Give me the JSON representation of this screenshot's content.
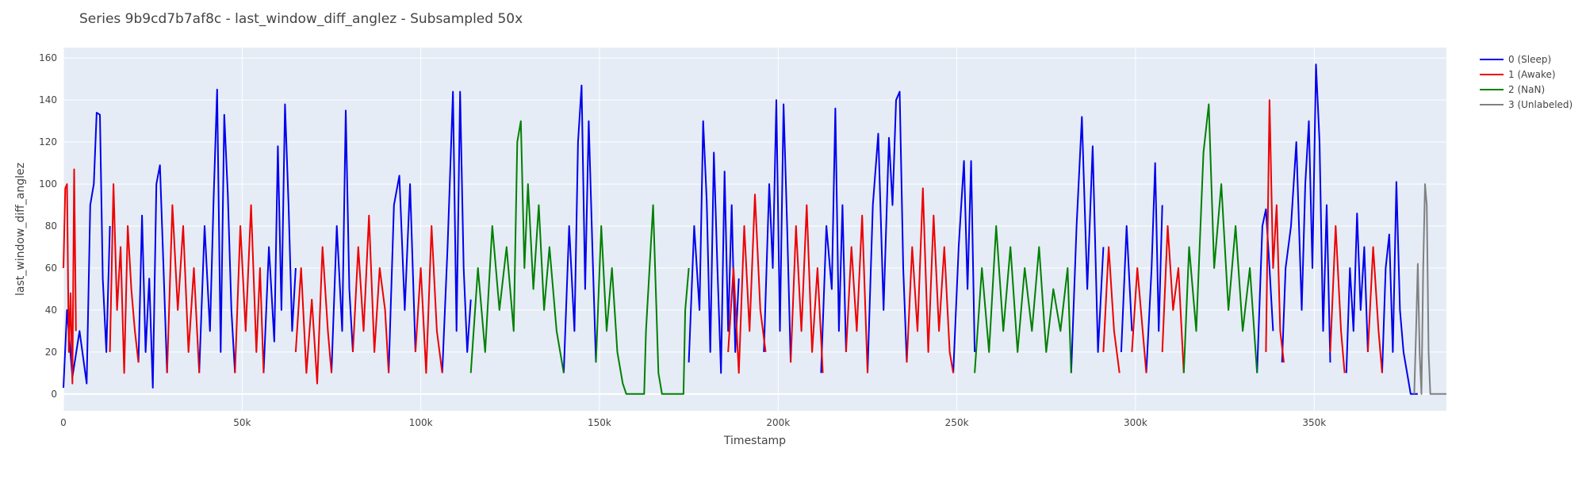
{
  "chart_data": {
    "type": "line",
    "title": "Series 9b9cd7b7af8c - last_window_diff_anglez - Subsampled 50x",
    "xlabel": "Timestamp",
    "ylabel": "last_window_diff_anglez",
    "xlim": [
      0,
      387000
    ],
    "ylim": [
      -8,
      165
    ],
    "x_ticks": [
      0,
      50000,
      100000,
      150000,
      200000,
      250000,
      300000,
      350000
    ],
    "x_tick_labels": [
      "0",
      "50k",
      "100k",
      "150k",
      "200k",
      "250k",
      "300k",
      "350k"
    ],
    "y_ticks": [
      0,
      20,
      40,
      60,
      80,
      100,
      120,
      140,
      160
    ],
    "y_tick_labels": [
      "0",
      "20",
      "40",
      "60",
      "80",
      "100",
      "120",
      "140",
      "160"
    ],
    "grid": true,
    "legend_position": "top-right",
    "colors": {
      "plot_bg": "#e5ecf6",
      "grid": "#ffffff",
      "text": "#444444",
      "title": "#444444"
    },
    "series": [
      {
        "name": "0 (Sleep)",
        "color": "#0000ee",
        "segments": [
          {
            "x": [
              0,
              1000,
              2500,
              4500,
              6500,
              7500,
              8500,
              9300,
              10200,
              11000,
              12000,
              13000
            ],
            "y": [
              3,
              40,
              8,
              30,
              5,
              90,
              100,
              134,
              133,
              55,
              20,
              80
            ]
          },
          {
            "x": [
              21000,
              22000,
              23000,
              24000,
              25000,
              26000,
              27000,
              28000,
              29000
            ],
            "y": [
              15,
              85,
              20,
              55,
              3,
              100,
              109,
              60,
              10
            ]
          },
          {
            "x": [
              38000,
              39500,
              41000,
              42000,
              43000,
              44000,
              45000,
              46000,
              47000,
              48000
            ],
            "y": [
              10,
              80,
              30,
              92,
              145,
              20,
              133,
              95,
              40,
              10
            ]
          },
          {
            "x": [
              56000,
              57500,
              59000,
              60000,
              61000,
              62000,
              63000,
              64000,
              65000
            ],
            "y": [
              10,
              70,
              25,
              118,
              40,
              138,
              90,
              30,
              60
            ]
          },
          {
            "x": [
              75000,
              76500,
              78000,
              79000,
              80000,
              81000
            ],
            "y": [
              10,
              80,
              30,
              135,
              50,
              20
            ]
          },
          {
            "x": [
              91000,
              92500,
              94000,
              95500,
              97000,
              98500
            ],
            "y": [
              10,
              90,
              104,
              40,
              100,
              20
            ]
          },
          {
            "x": [
              106000,
              107500,
              109000,
              110000,
              111000,
              112000,
              113000,
              114000
            ],
            "y": [
              10,
              70,
              144,
              30,
              144,
              60,
              20,
              45
            ]
          },
          {
            "x": [
              140000,
              141500,
              143000,
              144000,
              145000,
              146000,
              147000,
              148000,
              149000
            ],
            "y": [
              10,
              80,
              30,
              120,
              147,
              50,
              130,
              70,
              15
            ]
          },
          {
            "x": [
              175000,
              176500,
              178000,
              179000,
              180000,
              181000,
              182000,
              183000,
              184000,
              185000,
              186000,
              187000,
              188000,
              189000
            ],
            "y": [
              15,
              80,
              40,
              130,
              92,
              20,
              115,
              60,
              10,
              106,
              30,
              90,
              20,
              55
            ]
          },
          {
            "x": [
              196000,
              197500,
              198500,
              199500,
              200500,
              201500,
              202500,
              203500
            ],
            "y": [
              20,
              100,
              60,
              140,
              30,
              138,
              80,
              15
            ]
          },
          {
            "x": [
              212000,
              213500,
              215000,
              216000,
              217000,
              218000,
              219000
            ],
            "y": [
              10,
              80,
              50,
              136,
              30,
              90,
              20
            ]
          },
          {
            "x": [
              225000,
              226500,
              228000,
              229500,
              231000,
              232000,
              233000,
              234000,
              235000,
              236000
            ],
            "y": [
              10,
              90,
              124,
              40,
              122,
              90,
              140,
              144,
              60,
              15
            ]
          },
          {
            "x": [
              249000,
              250500,
              252000,
              253000,
              254000,
              255000
            ],
            "y": [
              10,
              70,
              111,
              50,
              111,
              20
            ]
          },
          {
            "x": [
              282000,
              283500,
              285000,
              286500,
              288000,
              289500,
              291000
            ],
            "y": [
              10,
              80,
              132,
              50,
              118,
              20,
              70
            ]
          },
          {
            "x": [
              296000,
              297500,
              299000
            ],
            "y": [
              20,
              80,
              30
            ]
          },
          {
            "x": [
              303000,
              304500,
              305500,
              306500,
              307500
            ],
            "y": [
              10,
              60,
              110,
              30,
              90
            ]
          },
          {
            "x": [
              334000,
              335500,
              336500,
              337500,
              338500
            ],
            "y": [
              10,
              80,
              88,
              60,
              30
            ]
          },
          {
            "x": [
              341000,
              342000,
              343500,
              345000,
              346500,
              347500,
              348500,
              349500,
              350500,
              351500,
              352500,
              353500,
              354500
            ],
            "y": [
              15,
              60,
              80,
              120,
              40,
              100,
              130,
              60,
              157,
              120,
              30,
              90,
              15
            ]
          },
          {
            "x": [
              359000,
              360000,
              361000,
              362000,
              363000,
              364000,
              365000
            ],
            "y": [
              10,
              60,
              30,
              86,
              40,
              70,
              20
            ]
          },
          {
            "x": [
              369000,
              370000,
              371000,
              372000,
              373000,
              374000,
              375000,
              376000,
              377000,
              378000,
              379000
            ],
            "y": [
              10,
              60,
              76,
              20,
              101,
              40,
              20,
              10,
              0,
              0,
              0
            ]
          }
        ]
      },
      {
        "name": "1 (Awake)",
        "color": "#ee0000",
        "segments": [
          {
            "x": [
              0,
              500,
              1000,
              1500,
              2000,
              2500,
              3000,
              3500
            ],
            "y": [
              60,
              98,
              100,
              20,
              48,
              5,
              107,
              30
            ]
          },
          {
            "x": [
              13000,
              14000,
              15000,
              16000,
              17000,
              18000,
              19000,
              20000,
              21000
            ],
            "y": [
              20,
              100,
              40,
              70,
              10,
              80,
              50,
              30,
              15
            ]
          },
          {
            "x": [
              29000,
              30500,
              32000,
              33500,
              35000,
              36500,
              38000
            ],
            "y": [
              10,
              90,
              40,
              80,
              20,
              60,
              10
            ]
          },
          {
            "x": [
              48000,
              49500,
              51000,
              52500,
              54000,
              55000,
              56000
            ],
            "y": [
              10,
              80,
              30,
              90,
              20,
              60,
              10
            ]
          },
          {
            "x": [
              65000,
              66500,
              68000,
              69500,
              71000,
              72500,
              74000,
              75000
            ],
            "y": [
              20,
              60,
              10,
              45,
              5,
              70,
              30,
              10
            ]
          },
          {
            "x": [
              81000,
              82500,
              84000,
              85500,
              87000,
              88500,
              90000,
              91000
            ],
            "y": [
              20,
              70,
              30,
              85,
              20,
              60,
              40,
              10
            ]
          },
          {
            "x": [
              98500,
              100000,
              101500,
              103000,
              104500,
              106000
            ],
            "y": [
              20,
              60,
              10,
              80,
              30,
              10
            ]
          },
          {
            "x": [
              186000,
              187500,
              189000,
              190500,
              192000,
              193500,
              195000,
              196500
            ],
            "y": [
              20,
              60,
              10,
              80,
              30,
              95,
              40,
              20
            ]
          },
          {
            "x": [
              203500,
              205000,
              206500,
              208000,
              209500,
              211000,
              212500
            ],
            "y": [
              15,
              80,
              30,
              90,
              20,
              60,
              10
            ]
          },
          {
            "x": [
              219000,
              220500,
              222000,
              223500,
              225000
            ],
            "y": [
              20,
              70,
              30,
              85,
              10
            ]
          },
          {
            "x": [
              236000,
              237500,
              239000,
              240500,
              242000,
              243500,
              245000,
              246500,
              248000,
              249000
            ],
            "y": [
              15,
              70,
              30,
              98,
              20,
              85,
              30,
              70,
              20,
              10
            ]
          },
          {
            "x": [
              291000,
              292500,
              294000,
              295500
            ],
            "y": [
              20,
              70,
              30,
              10
            ]
          },
          {
            "x": [
              299000,
              300500,
              302000,
              303000
            ],
            "y": [
              20,
              60,
              30,
              10
            ]
          },
          {
            "x": [
              307500,
              309000,
              310500,
              312000,
              313500
            ],
            "y": [
              20,
              80,
              40,
              60,
              10
            ]
          },
          {
            "x": [
              336500,
              337500,
              338500,
              339500,
              340500,
              341500
            ],
            "y": [
              20,
              140,
              60,
              90,
              30,
              15
            ]
          },
          {
            "x": [
              354500,
              356000,
              357500,
              358500
            ],
            "y": [
              20,
              80,
              30,
              10
            ]
          },
          {
            "x": [
              365000,
              366500,
              368000,
              369000
            ],
            "y": [
              20,
              70,
              30,
              10
            ]
          }
        ]
      },
      {
        "name": "2 (NaN)",
        "color": "#008000",
        "segments": [
          {
            "x": [
              114000,
              116000,
              118000,
              120000,
              122000,
              124000,
              126000,
              127000,
              128000,
              129000,
              130000,
              131500,
              133000,
              134500,
              136000,
              138000,
              140000
            ],
            "y": [
              10,
              60,
              20,
              80,
              40,
              70,
              30,
              120,
              130,
              60,
              100,
              50,
              90,
              40,
              70,
              30,
              10
            ]
          },
          {
            "x": [
              149000,
              150500,
              152000,
              153500,
              155000,
              156500,
              157500,
              158500,
              159500,
              160500,
              161500,
              162500,
              163000,
              164000,
              165000,
              166500,
              167500,
              168500,
              169500,
              170500,
              171500,
              172500,
              173500,
              174000,
              175000
            ],
            "y": [
              15,
              80,
              30,
              60,
              20,
              5,
              0,
              0,
              0,
              0,
              0,
              0,
              30,
              60,
              90,
              10,
              0,
              0,
              0,
              0,
              0,
              0,
              0,
              40,
              60
            ]
          },
          {
            "x": [
              255000,
              257000,
              259000,
              261000,
              263000,
              265000,
              267000,
              269000,
              271000,
              273000,
              275000,
              277000,
              279000,
              281000,
              282000
            ],
            "y": [
              10,
              60,
              20,
              80,
              30,
              70,
              20,
              60,
              30,
              70,
              20,
              50,
              30,
              60,
              10
            ]
          },
          {
            "x": [
              313500,
              315000,
              317000,
              319000,
              320500,
              322000,
              324000,
              326000,
              328000,
              330000,
              332000,
              334000
            ],
            "y": [
              10,
              70,
              30,
              115,
              138,
              60,
              100,
              40,
              80,
              30,
              60,
              10
            ]
          }
        ]
      },
      {
        "name": "3 (Unlabeled)",
        "color": "#808080",
        "segments": [
          {
            "x": [
              378000,
              378500,
              379000,
              379500,
              380000,
              380500,
              381000,
              381500,
              382000,
              382500,
              383000,
              384000,
              385000,
              387000
            ],
            "y": [
              0,
              30,
              62,
              20,
              0,
              60,
              100,
              90,
              20,
              0,
              0,
              0,
              0,
              0
            ]
          }
        ]
      }
    ]
  }
}
